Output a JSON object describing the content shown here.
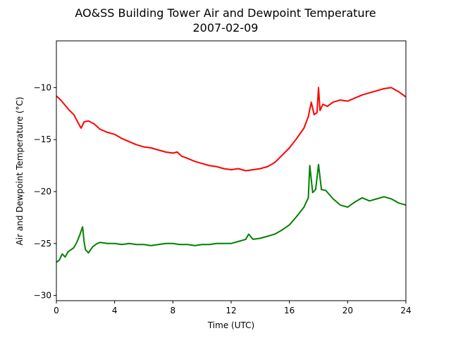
{
  "chart_data": {
    "type": "line",
    "title": "AO&SS Building Tower Air and Dewpoint Temperature",
    "subtitle": "2007-02-09",
    "xlabel": "Time (UTC)",
    "ylabel": "Air and Dewpoint Temperature (°C)",
    "xlim": [
      0,
      24
    ],
    "ylim": [
      -30.5,
      -5.5
    ],
    "xticks": [
      0,
      4,
      8,
      12,
      16,
      20,
      24
    ],
    "yticks": [
      -30,
      -25,
      -20,
      -15,
      -10
    ],
    "grid": false,
    "legend": "none",
    "series": [
      {
        "color": "#ff0000",
        "x": [
          0,
          0.3,
          0.6,
          0.9,
          1.2,
          1.5,
          1.7,
          1.9,
          2.2,
          2.6,
          3,
          3.5,
          4,
          4.5,
          5,
          5.5,
          6,
          6.5,
          7,
          7.5,
          8,
          8.3,
          8.6,
          9,
          9.5,
          10,
          10.5,
          11,
          11.5,
          12,
          12.5,
          13,
          13.5,
          14,
          14.5,
          15,
          15.5,
          16,
          16.5,
          17,
          17.3,
          17.5,
          17.7,
          17.9,
          18.0,
          18.1,
          18.3,
          18.6,
          19,
          19.5,
          20,
          20.5,
          21,
          21.5,
          22,
          22.5,
          23,
          23.5,
          24
        ],
        "y": [
          -10.8,
          -11.2,
          -11.7,
          -12.2,
          -12.6,
          -13.4,
          -13.9,
          -13.3,
          -13.2,
          -13.5,
          -14.0,
          -14.3,
          -14.5,
          -14.9,
          -15.2,
          -15.5,
          -15.7,
          -15.8,
          -16.0,
          -16.2,
          -16.3,
          -16.2,
          -16.6,
          -16.8,
          -17.1,
          -17.3,
          -17.5,
          -17.6,
          -17.8,
          -17.9,
          -17.8,
          -18.0,
          -17.9,
          -17.8,
          -17.6,
          -17.2,
          -16.5,
          -15.8,
          -14.9,
          -13.9,
          -12.8,
          -11.4,
          -12.6,
          -12.4,
          -10.0,
          -12.2,
          -11.6,
          -11.8,
          -11.4,
          -11.2,
          -11.3,
          -11.0,
          -10.7,
          -10.5,
          -10.3,
          -10.1,
          -10.0,
          -10.4,
          -10.9
        ]
      },
      {
        "color": "#008000",
        "x": [
          0,
          0.2,
          0.4,
          0.6,
          0.8,
          1.0,
          1.2,
          1.4,
          1.6,
          1.8,
          1.9,
          2.0,
          2.2,
          2.5,
          2.8,
          3,
          3.5,
          4,
          4.5,
          5,
          5.5,
          6,
          6.5,
          7,
          7.5,
          8,
          8.5,
          9,
          9.5,
          10,
          10.5,
          11,
          11.5,
          12,
          12.5,
          13,
          13.2,
          13.5,
          14,
          14.5,
          15,
          15.5,
          16,
          16.5,
          17,
          17.3,
          17.4,
          17.6,
          17.8,
          18.0,
          18.2,
          18.5,
          19,
          19.5,
          20,
          20.5,
          21,
          21.5,
          22,
          22.5,
          23,
          23.5,
          24
        ],
        "y": [
          -26.8,
          -26.6,
          -26.0,
          -26.3,
          -25.8,
          -25.6,
          -25.4,
          -24.9,
          -24.2,
          -23.4,
          -24.8,
          -25.6,
          -25.9,
          -25.3,
          -25.0,
          -24.9,
          -25.0,
          -25.0,
          -25.1,
          -25.0,
          -25.1,
          -25.1,
          -25.2,
          -25.1,
          -25.0,
          -25.0,
          -25.1,
          -25.1,
          -25.2,
          -25.1,
          -25.1,
          -25.0,
          -25.0,
          -25.0,
          -24.8,
          -24.6,
          -24.1,
          -24.6,
          -24.5,
          -24.3,
          -24.1,
          -23.7,
          -23.2,
          -22.4,
          -21.5,
          -20.6,
          -17.5,
          -20.1,
          -19.8,
          -17.4,
          -19.8,
          -19.9,
          -20.7,
          -21.3,
          -21.5,
          -21.0,
          -20.6,
          -20.9,
          -20.7,
          -20.5,
          -20.7,
          -21.1,
          -21.3
        ]
      }
    ]
  }
}
